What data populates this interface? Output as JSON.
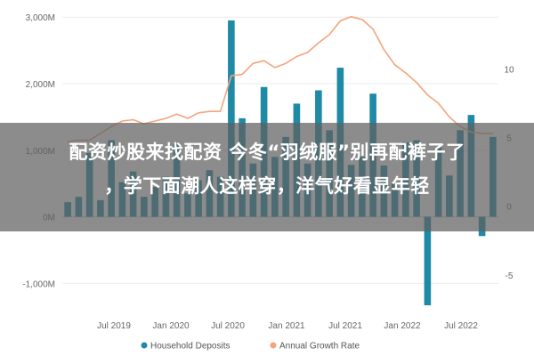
{
  "headline": {
    "line1": "配资炒股来找配资 今冬“羽绒服”别再配裤子了",
    "line2": "，学下面潮人这样穿，洋气好看显年轻"
  },
  "chart_data": {
    "type": "bar",
    "left_axis": {
      "ticks": [
        "3,000M",
        "2,000M",
        "1,000M",
        "0M",
        "-1,000M"
      ],
      "values": [
        3000,
        2000,
        1000,
        0,
        -1000
      ],
      "ylim": [
        -1450,
        3150
      ]
    },
    "right_axis": {
      "ticks": [
        "10",
        "5",
        "0",
        "-5"
      ],
      "values": [
        10,
        5,
        0,
        -5
      ],
      "ylim": [
        -7.8,
        14.5
      ]
    },
    "x_ticks": [
      "Jul 2019",
      "Jan 2020",
      "Jul 2020",
      "Jan 2021",
      "Jul 2021",
      "Jan 2022",
      "Jul 2022"
    ],
    "grid": true,
    "legend_position": "bottom",
    "series": [
      {
        "name": "Household Deposits",
        "type": "bar",
        "color": "#1f8aa6",
        "values": [
          220,
          300,
          960,
          250,
          1150,
          520,
          680,
          300,
          450,
          600,
          1100,
          350,
          550,
          700,
          600,
          2950,
          1480,
          800,
          1950,
          900,
          1200,
          1700,
          800,
          1900,
          1300,
          2240,
          780,
          900,
          1850,
          770,
          500,
          1120,
          1150,
          -1330,
          1050,
          620,
          1300,
          1530,
          -290,
          1200
        ]
      },
      {
        "name": "Annual Growth Rate",
        "type": "line",
        "color": "#f5a47a",
        "values": [
          4.7,
          4.8,
          4.8,
          5.3,
          5.8,
          6.2,
          6.3,
          6.0,
          6.2,
          6.4,
          6.7,
          6.4,
          6.8,
          6.9,
          6.9,
          9.5,
          9.6,
          10.4,
          10.6,
          10.1,
          10.4,
          10.9,
          11.2,
          11.9,
          12.5,
          13.5,
          13.8,
          13.6,
          12.9,
          11.4,
          10.3,
          9.7,
          9.0,
          8.1,
          7.5,
          6.5,
          5.8,
          5.4,
          5.3,
          5.3
        ]
      }
    ]
  }
}
